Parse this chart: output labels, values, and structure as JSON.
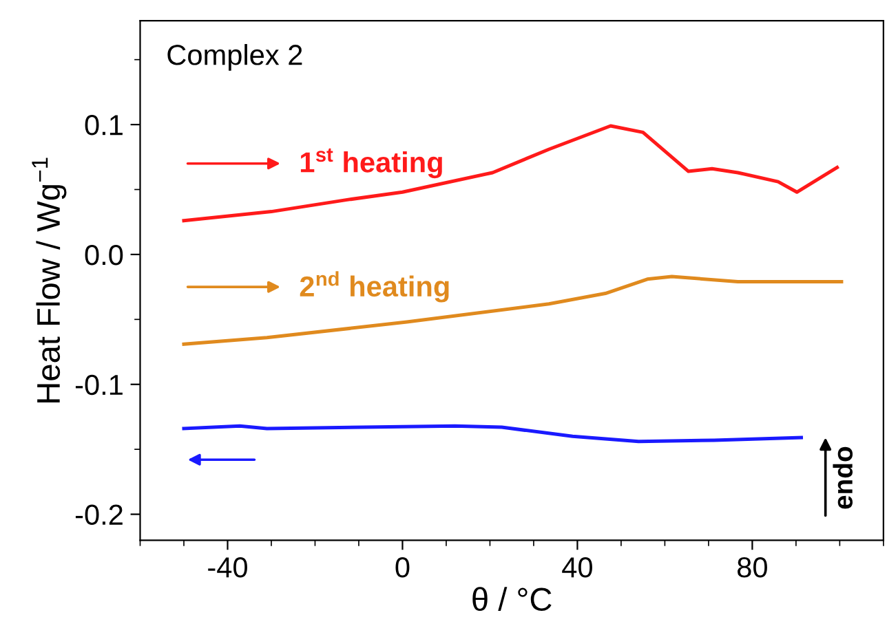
{
  "chart_data": {
    "type": "line",
    "title": "Complex 2",
    "xlabel": "θ / °C",
    "ylabel": "Heat Flow / Wg$^{−1}$",
    "xlim": [
      -60,
      110
    ],
    "xticks": [
      -40,
      0,
      40,
      80
    ],
    "ylim": [
      -0.22,
      0.18
    ],
    "yticks": [
      {
        "value": -0.2,
        "label": "-0.2"
      },
      {
        "value": -0.1,
        "label": "-0.1"
      },
      {
        "value": 0,
        "label": "0.0"
      },
      {
        "value": 0.1,
        "label": "0.1"
      }
    ],
    "grid": false,
    "legend": "left",
    "line_style": "solid",
    "marker": "none",
    "annotations": [
      "endo"
    ],
    "series": [
      {
        "name": "1$^{st}$ heating",
        "color": "#ff1a1a",
        "x": [
          -50,
          -30,
          -12.9,
          0,
          20.6,
          33.5,
          47.6,
          55,
          65.4,
          70.8,
          76.7,
          85.9,
          90.2,
          99.4
        ],
        "values": [
          0.026,
          0.033,
          0.042,
          0.048,
          0.063,
          0.081,
          0.099,
          0.094,
          0.064,
          0.066,
          0.063,
          0.056,
          0.048,
          0.067
        ]
      },
      {
        "name": "2$^{nd}$ heating",
        "color": "#e08a1e",
        "x": [
          -50,
          -31,
          1,
          33.5,
          46.4,
          56,
          61.6,
          76.7,
          100.4
        ],
        "values": [
          -0.069,
          -0.064,
          -0.052,
          -0.038,
          -0.03,
          -0.019,
          -0.017,
          -0.021,
          -0.021
        ]
      },
      {
        "color": "#1a1aff",
        "x": [
          -50,
          -37.2,
          -31,
          12,
          22.7,
          38.9,
          54,
          71.3,
          91.2
        ],
        "values": [
          -0.134,
          -0.132,
          -0.134,
          -0.132,
          -0.133,
          -0.14,
          -0.144,
          -0.143,
          -0.141
        ]
      }
    ]
  }
}
